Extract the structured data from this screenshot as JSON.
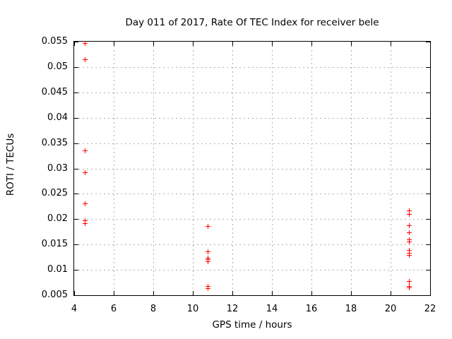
{
  "colors": {
    "background": "#ffffff",
    "text": "#000000",
    "axis": "#000000",
    "grid": "#b0b0b0",
    "marker": "#ff0000"
  },
  "chart_data": {
    "type": "scatter",
    "title": "Day 011 of 2017, Rate Of TEC Index for receiver bele",
    "xlabel": "GPS time / hours",
    "ylabel": "ROTI / TECUs",
    "xlim": [
      4,
      22
    ],
    "ylim": [
      0.005,
      0.055
    ],
    "xtick_values": [
      4,
      6,
      8,
      10,
      12,
      14,
      16,
      18,
      20,
      22
    ],
    "xtick_labels": [
      "4",
      "6",
      "8",
      "10",
      "12",
      "14",
      "16",
      "18",
      "20",
      "22"
    ],
    "ytick_values": [
      0.005,
      0.01,
      0.015,
      0.02,
      0.025,
      0.03,
      0.035,
      0.04,
      0.045,
      0.05,
      0.055
    ],
    "ytick_labels": [
      "0.005",
      "0.01",
      "0.015",
      "0.02",
      "0.025",
      "0.03",
      "0.035",
      "0.04",
      "0.045",
      "0.05",
      "0.055"
    ],
    "grid": true,
    "legend_position": "none",
    "marker_shape": "plus",
    "series": [
      {
        "name": "ROTI",
        "points": [
          [
            4.57,
            0.0546
          ],
          [
            4.57,
            0.0514
          ],
          [
            4.57,
            0.0335
          ],
          [
            4.57,
            0.0291
          ],
          [
            4.57,
            0.0231
          ],
          [
            4.57,
            0.0197
          ],
          [
            4.57,
            0.0192
          ],
          [
            10.75,
            0.0186
          ],
          [
            10.75,
            0.0136
          ],
          [
            10.75,
            0.0123
          ],
          [
            10.75,
            0.012
          ],
          [
            10.75,
            0.0116
          ],
          [
            10.75,
            0.0068
          ],
          [
            10.75,
            0.0063
          ],
          [
            20.93,
            0.0216
          ],
          [
            20.93,
            0.021
          ],
          [
            20.93,
            0.0187
          ],
          [
            20.93,
            0.0173
          ],
          [
            20.93,
            0.0159
          ],
          [
            20.93,
            0.0155
          ],
          [
            20.93,
            0.0138
          ],
          [
            20.93,
            0.0133
          ],
          [
            20.93,
            0.0128
          ],
          [
            20.93,
            0.0077
          ],
          [
            20.93,
            0.0068
          ],
          [
            20.93,
            0.0064
          ]
        ]
      }
    ]
  }
}
